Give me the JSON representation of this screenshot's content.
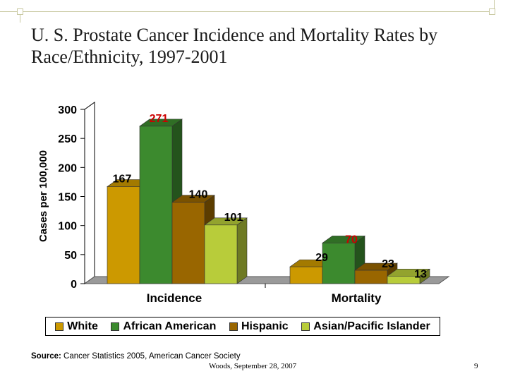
{
  "slide": {
    "title": "U. S. Prostate Cancer Incidence and Mortality Rates by Race/Ethnicity, 1997-2001",
    "source_label": "Source:",
    "source_text": " Cancer Statistics 2005, American Cancer Society",
    "footer": "Woods, September 28, 2007",
    "page_number": "9"
  },
  "colors": {
    "White": "#cc9900",
    "African American": "#3c8a2e",
    "Hispanic": "#996600",
    "Asian/Pacific Islander": "#b8cc3a",
    "highlight_label": "#cc0000"
  },
  "chart_data": {
    "type": "bar",
    "title": "",
    "ylabel": "Cases per 100,000",
    "xlabel": "",
    "ylim": [
      0,
      300
    ],
    "yticks": [
      0,
      50,
      100,
      150,
      200,
      250,
      300
    ],
    "categories": [
      "Incidence",
      "Mortality"
    ],
    "legend_position": "bottom",
    "three_d": true,
    "series": [
      {
        "name": "White",
        "values": [
          167,
          29
        ]
      },
      {
        "name": "African American",
        "values": [
          271,
          70
        ]
      },
      {
        "name": "Hispanic",
        "values": [
          140,
          23
        ]
      },
      {
        "name": "Asian/Pacific Islander",
        "values": [
          101,
          13
        ]
      }
    ],
    "data_labels": [
      [
        "167",
        "29"
      ],
      [
        "271",
        "70"
      ],
      [
        "140",
        "23"
      ],
      [
        "101",
        "13"
      ]
    ]
  }
}
